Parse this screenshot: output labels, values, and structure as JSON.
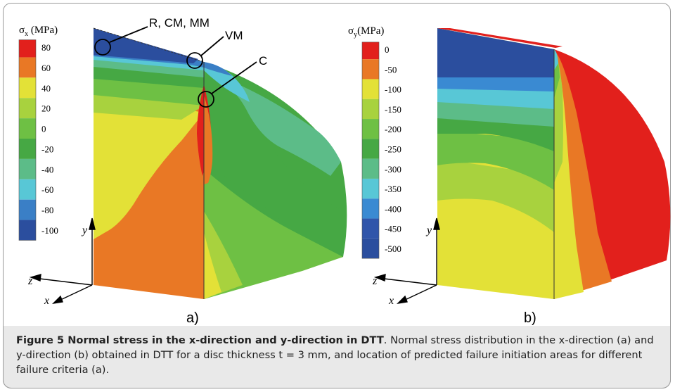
{
  "panel_a": {
    "title_sym": "σ",
    "title_sub": "x",
    "title_unit": " (MPa)",
    "legend_levels": [
      "80",
      "60",
      "40",
      "20",
      "0",
      "-20",
      "-40",
      "-60",
      "-80",
      "-100"
    ],
    "legend_colors": [
      "#e2201c",
      "#e97825",
      "#e3e137",
      "#a8d23e",
      "#6ec044",
      "#46a844",
      "#5cbc88",
      "#58c7d6",
      "#3a7fc6",
      "#2b4e9e"
    ],
    "annotations": [
      "R, CM, MM",
      "VM",
      "C"
    ],
    "axes": [
      "y",
      "z",
      "x"
    ],
    "label": "a)"
  },
  "panel_b": {
    "title_sym": "σ",
    "title_sub": "y",
    "title_unit": "(MPa)",
    "legend_levels": [
      "0",
      "-50",
      "-100",
      "-150",
      "-200",
      "-250",
      "-300",
      "-350",
      "-400",
      "-450",
      "-500"
    ],
    "legend_colors": [
      "#e2201c",
      "#e97825",
      "#e3e137",
      "#a8d23e",
      "#6ec044",
      "#46a844",
      "#5cbc88",
      "#58c7d6",
      "#3a8ad2",
      "#3055aa",
      "#2b4e9e"
    ],
    "axes": [
      "y",
      "z",
      "x"
    ],
    "label": "b)"
  },
  "caption": {
    "title": "Figure 5 Normal stress in the x-direction and y-direction in DTT",
    "text": ". Normal stress distribution in the x-direction (a) and y-direction (b) obtained in DTT for a disc thickness t = 3 mm, and location of predicted failure initiation areas for different failure criteria (a)."
  }
}
